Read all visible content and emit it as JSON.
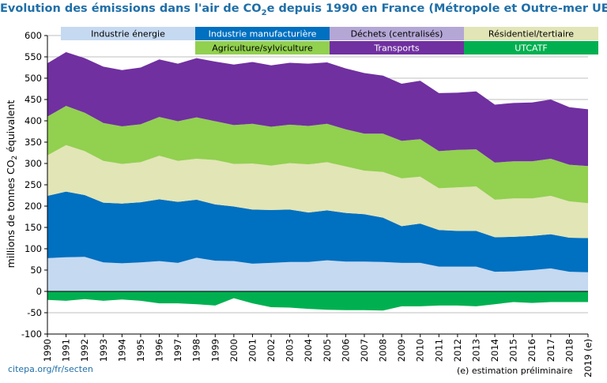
{
  "title_part1": "Evolution des émissions dans l'air de CO",
  "title_sub": "2",
  "title_part2": "e depuis 1990 en France (Métropole et Outre-mer UE)",
  "source_note": "citepa.org/fr/secten",
  "estimate_note": "(e) estimation préliminaire",
  "chart_data": {
    "type": "area",
    "stacked": true,
    "title": "Evolution des émissions dans l'air de CO2e depuis 1990 en France (Métropole et Outre-mer UE)",
    "ylabel": "millions de tonnes CO2 équivalent",
    "ylabel_parts": [
      "millions de tonnes CO",
      "2",
      " équivalent"
    ],
    "xlabel": "",
    "ylim": [
      -100,
      600
    ],
    "yticks": [
      -100,
      -50,
      0,
      50,
      100,
      150,
      200,
      250,
      300,
      350,
      400,
      450,
      500,
      550,
      600
    ],
    "grid": true,
    "legend": "top",
    "x": [
      "1990",
      "1991",
      "1992",
      "1993",
      "1994",
      "1995",
      "1996",
      "1997",
      "1998",
      "1999",
      "2000",
      "2001",
      "2002",
      "2003",
      "2004",
      "2005",
      "2006",
      "2007",
      "2008",
      "2009",
      "2010",
      "2011",
      "2012",
      "2013",
      "2014",
      "2015",
      "2016",
      "2017",
      "2018",
      "2019 (e)"
    ],
    "series": [
      {
        "name": "Industrie énergie",
        "color": "#c5d9f1",
        "values": [
          78,
          80,
          81,
          68,
          66,
          68,
          71,
          67,
          79,
          72,
          71,
          65,
          67,
          69,
          69,
          73,
          70,
          70,
          69,
          67,
          67,
          58,
          58,
          58,
          46,
          47,
          50,
          54,
          46,
          45
        ]
      },
      {
        "name": "Industrie manufacturière",
        "color": "#0070c0",
        "values": [
          146,
          154,
          145,
          140,
          140,
          141,
          145,
          143,
          136,
          132,
          128,
          127,
          124,
          123,
          116,
          117,
          114,
          111,
          104,
          86,
          92,
          86,
          84,
          84,
          81,
          81,
          80,
          80,
          80,
          80
        ]
      },
      {
        "name": "Résidentiel/tertiaire",
        "color": "#e2e5b6",
        "values": [
          95,
          109,
          103,
          98,
          93,
          94,
          102,
          96,
          96,
          104,
          100,
          108,
          104,
          109,
          113,
          113,
          109,
          102,
          107,
          112,
          110,
          98,
          102,
          104,
          88,
          90,
          88,
          90,
          85,
          82
        ]
      },
      {
        "name": "Agriculture/sylviculture",
        "color": "#92d050",
        "values": [
          91,
          92,
          90,
          89,
          88,
          89,
          91,
          93,
          97,
          91,
          91,
          93,
          91,
          90,
          90,
          90,
          87,
          87,
          90,
          88,
          88,
          87,
          88,
          87,
          87,
          87,
          87,
          87,
          86,
          87
        ]
      },
      {
        "name": "Transports",
        "color": "#7030a0",
        "values": [
          125,
          126,
          128,
          132,
          132,
          133,
          135,
          135,
          139,
          140,
          142,
          145,
          144,
          145,
          146,
          144,
          143,
          142,
          136,
          134,
          137,
          136,
          134,
          136,
          136,
          137,
          138,
          139,
          135,
          133
        ]
      },
      {
        "name": "Déchets (centralisés)",
        "color": "#b4a7d6",
        "values": [
          0,
          0,
          0,
          0,
          0,
          0,
          0,
          0,
          0,
          0,
          0,
          0,
          0,
          0,
          0,
          0,
          0,
          0,
          0,
          0,
          0,
          0,
          0,
          0,
          0,
          0,
          0,
          0,
          0,
          0
        ]
      },
      {
        "name": "UTCATF",
        "color": "#00b050",
        "values": [
          -20,
          -22,
          -18,
          -22,
          -19,
          -22,
          -28,
          -28,
          -30,
          -33,
          -16,
          -28,
          -37,
          -38,
          -41,
          -43,
          -44,
          -44,
          -45,
          -35,
          -35,
          -33,
          -33,
          -35,
          -30,
          -25,
          -27,
          -25,
          -25,
          -25
        ]
      }
    ]
  },
  "legend_layout": [
    {
      "series": "Industrie énergie",
      "label": "Industrie énergie",
      "text_color": "#000000"
    },
    {
      "series": "Industrie manufacturière",
      "label": "Industrie manufacturière",
      "text_color": "#ffffff"
    },
    {
      "series": "Déchets (centralisés)",
      "label": "Déchets (centralisés)",
      "text_color": "#000000"
    },
    {
      "series": "Résidentiel/tertiaire",
      "label": "Résidentiel/tertiaire",
      "text_color": "#000000"
    },
    {
      "series": "Agriculture/sylviculture",
      "label": "Agriculture/sylviculture",
      "text_color": "#000000"
    },
    {
      "series": "Transports",
      "label": "Transports",
      "text_color": "#ffffff"
    },
    {
      "series": "UTCATF",
      "label": "UTCATF",
      "text_color": "#ffffff"
    }
  ]
}
